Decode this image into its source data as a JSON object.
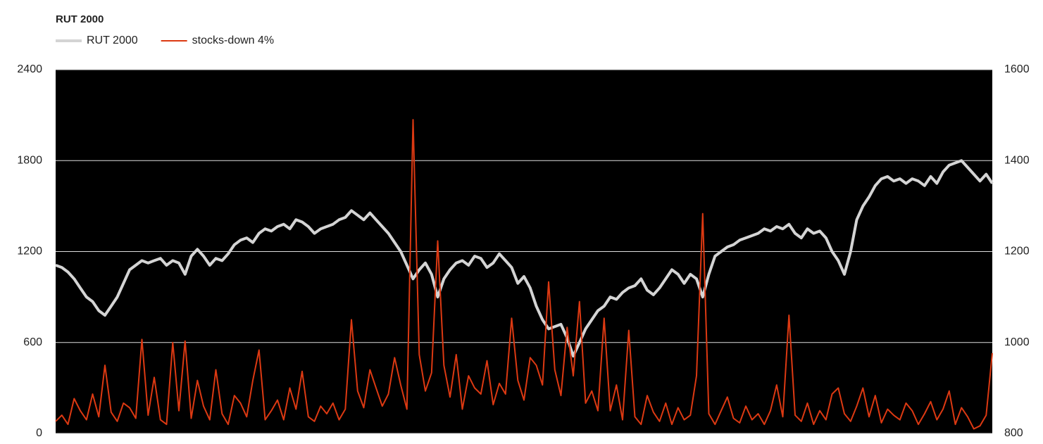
{
  "chart_data": {
    "type": "line",
    "title": "RUT 2000",
    "ylim": [
      0,
      2400
    ],
    "yticks": [
      0,
      600,
      1200,
      1800,
      2400
    ],
    "y2lim": [
      800,
      1600
    ],
    "y2ticks": [
      800,
      1000,
      1200,
      1400,
      1600
    ],
    "grid": true,
    "legend": "top-left",
    "series": [
      {
        "name": "RUT 2000",
        "color": "#d4d4d4",
        "axis": "y2",
        "values": [
          1170,
          1165,
          1155,
          1140,
          1120,
          1100,
          1090,
          1070,
          1060,
          1080,
          1100,
          1130,
          1160,
          1170,
          1180,
          1175,
          1180,
          1185,
          1170,
          1180,
          1175,
          1150,
          1190,
          1205,
          1190,
          1170,
          1185,
          1180,
          1195,
          1215,
          1225,
          1230,
          1220,
          1240,
          1250,
          1245,
          1255,
          1260,
          1250,
          1270,
          1265,
          1255,
          1240,
          1250,
          1255,
          1260,
          1270,
          1275,
          1290,
          1280,
          1270,
          1285,
          1270,
          1255,
          1240,
          1220,
          1200,
          1170,
          1140,
          1160,
          1175,
          1150,
          1100,
          1140,
          1160,
          1175,
          1180,
          1170,
          1190,
          1185,
          1165,
          1175,
          1195,
          1180,
          1165,
          1130,
          1145,
          1120,
          1080,
          1050,
          1030,
          1035,
          1040,
          1010,
          970,
          1000,
          1030,
          1050,
          1070,
          1080,
          1100,
          1095,
          1110,
          1120,
          1125,
          1140,
          1115,
          1105,
          1120,
          1140,
          1160,
          1150,
          1130,
          1150,
          1140,
          1100,
          1150,
          1190,
          1200,
          1210,
          1215,
          1225,
          1230,
          1235,
          1240,
          1250,
          1245,
          1255,
          1250,
          1260,
          1240,
          1230,
          1250,
          1240,
          1245,
          1230,
          1200,
          1180,
          1150,
          1200,
          1270,
          1300,
          1320,
          1345,
          1360,
          1365,
          1355,
          1360,
          1350,
          1360,
          1355,
          1345,
          1365,
          1350,
          1375,
          1390,
          1395,
          1400,
          1385,
          1370,
          1355,
          1370,
          1350
        ]
      },
      {
        "name": "stocks-down 4%",
        "color": "#dc3912",
        "values": [
          80,
          120,
          60,
          230,
          150,
          90,
          260,
          110,
          450,
          140,
          80,
          200,
          170,
          100,
          620,
          120,
          370,
          90,
          60,
          600,
          150,
          610,
          100,
          350,
          180,
          90,
          420,
          130,
          60,
          250,
          200,
          110,
          350,
          550,
          90,
          150,
          220,
          90,
          300,
          160,
          410,
          110,
          80,
          180,
          130,
          200,
          90,
          160,
          750,
          280,
          170,
          420,
          300,
          180,
          260,
          500,
          320,
          160,
          2070,
          520,
          280,
          400,
          1270,
          450,
          240,
          520,
          160,
          380,
          300,
          260,
          480,
          190,
          330,
          260,
          760,
          350,
          220,
          500,
          450,
          320,
          1000,
          420,
          250,
          700,
          380,
          870,
          200,
          280,
          150,
          760,
          150,
          320,
          90,
          680,
          110,
          60,
          250,
          140,
          80,
          200,
          60,
          170,
          90,
          120,
          380,
          1450,
          130,
          60,
          150,
          240,
          100,
          70,
          180,
          90,
          130,
          60,
          150,
          320,
          110,
          780,
          120,
          80,
          200,
          60,
          150,
          90,
          260,
          300,
          130,
          80,
          180,
          300,
          110,
          250,
          70,
          160,
          120,
          90,
          200,
          150,
          60,
          130,
          210,
          90,
          160,
          280,
          60,
          170,
          110,
          30,
          50,
          120,
          530
        ]
      }
    ]
  }
}
